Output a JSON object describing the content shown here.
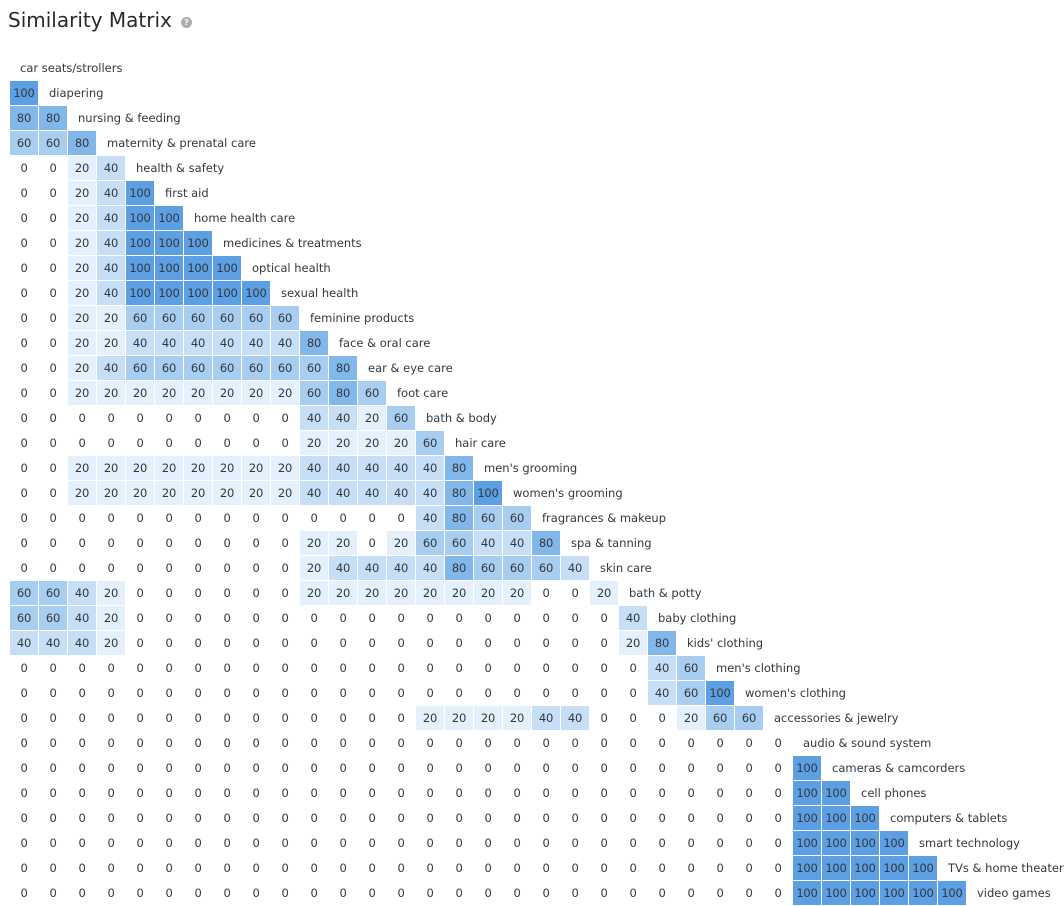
{
  "title": "Similarity Matrix",
  "help_icon": {
    "name": "help-icon",
    "glyph": "?"
  },
  "colors": {
    "0": "#ffffff",
    "20": "#e4f0fb",
    "40": "#c6dff6",
    "60": "#a7cdf0",
    "80": "#82b7ea",
    "100": "#5c9fe3",
    "text": "#333840"
  },
  "chart_data": {
    "type": "heatmap",
    "title": "Similarity Matrix",
    "labels": [
      "car seats/strollers",
      "diapering",
      "nursing & feeding",
      "maternity & prenatal care",
      "health & safety",
      "first aid",
      "home health care",
      "medicines & treatments",
      "optical health",
      "sexual health",
      "feminine products",
      "face & oral care",
      "ear & eye care",
      "foot care",
      "bath & body",
      "hair care",
      "men's grooming",
      "women's grooming",
      "fragrances & makeup",
      "spa & tanning",
      "skin care",
      "bath & potty",
      "baby clothing",
      "kids' clothing",
      "men's clothing",
      "women's clothing",
      "accessories & jewelry",
      "audio & sound system",
      "cameras & camcorders",
      "cell phones",
      "computers & tablets",
      "smart technology",
      "TVs & home theater",
      "video games"
    ],
    "rows": [
      [],
      [
        100
      ],
      [
        80,
        80
      ],
      [
        60,
        60,
        80
      ],
      [
        0,
        0,
        20,
        40
      ],
      [
        0,
        0,
        20,
        40,
        100
      ],
      [
        0,
        0,
        20,
        40,
        100,
        100
      ],
      [
        0,
        0,
        20,
        40,
        100,
        100,
        100
      ],
      [
        0,
        0,
        20,
        40,
        100,
        100,
        100,
        100
      ],
      [
        0,
        0,
        20,
        40,
        100,
        100,
        100,
        100,
        100
      ],
      [
        0,
        0,
        20,
        20,
        60,
        60,
        60,
        60,
        60,
        60
      ],
      [
        0,
        0,
        20,
        20,
        40,
        40,
        40,
        40,
        40,
        40,
        80
      ],
      [
        0,
        0,
        20,
        40,
        60,
        60,
        60,
        60,
        60,
        60,
        60,
        80
      ],
      [
        0,
        0,
        20,
        20,
        20,
        20,
        20,
        20,
        20,
        20,
        60,
        80,
        60
      ],
      [
        0,
        0,
        0,
        0,
        0,
        0,
        0,
        0,
        0,
        0,
        40,
        40,
        20,
        60
      ],
      [
        0,
        0,
        0,
        0,
        0,
        0,
        0,
        0,
        0,
        0,
        20,
        20,
        20,
        20,
        60
      ],
      [
        0,
        0,
        20,
        20,
        20,
        20,
        20,
        20,
        20,
        20,
        40,
        40,
        40,
        40,
        40,
        80
      ],
      [
        0,
        0,
        20,
        20,
        20,
        20,
        20,
        20,
        20,
        20,
        40,
        40,
        40,
        40,
        40,
        80,
        100
      ],
      [
        0,
        0,
        0,
        0,
        0,
        0,
        0,
        0,
        0,
        0,
        0,
        0,
        0,
        0,
        40,
        80,
        60,
        60
      ],
      [
        0,
        0,
        0,
        0,
        0,
        0,
        0,
        0,
        0,
        0,
        20,
        20,
        0,
        20,
        60,
        60,
        40,
        40,
        80
      ],
      [
        0,
        0,
        0,
        0,
        0,
        0,
        0,
        0,
        0,
        0,
        20,
        40,
        40,
        40,
        40,
        80,
        60,
        60,
        60,
        40
      ],
      [
        60,
        60,
        40,
        20,
        0,
        0,
        0,
        0,
        0,
        0,
        20,
        20,
        20,
        20,
        20,
        20,
        20,
        20,
        0,
        0,
        20
      ],
      [
        60,
        60,
        40,
        20,
        0,
        0,
        0,
        0,
        0,
        0,
        0,
        0,
        0,
        0,
        0,
        0,
        0,
        0,
        0,
        0,
        0,
        40
      ],
      [
        40,
        40,
        40,
        20,
        0,
        0,
        0,
        0,
        0,
        0,
        0,
        0,
        0,
        0,
        0,
        0,
        0,
        0,
        0,
        0,
        0,
        20,
        80
      ],
      [
        0,
        0,
        0,
        0,
        0,
        0,
        0,
        0,
        0,
        0,
        0,
        0,
        0,
        0,
        0,
        0,
        0,
        0,
        0,
        0,
        0,
        0,
        40,
        60
      ],
      [
        0,
        0,
        0,
        0,
        0,
        0,
        0,
        0,
        0,
        0,
        0,
        0,
        0,
        0,
        0,
        0,
        0,
        0,
        0,
        0,
        0,
        0,
        40,
        60,
        100
      ],
      [
        0,
        0,
        0,
        0,
        0,
        0,
        0,
        0,
        0,
        0,
        0,
        0,
        0,
        0,
        20,
        20,
        20,
        20,
        40,
        40,
        0,
        0,
        0,
        20,
        60,
        60
      ],
      [
        0,
        0,
        0,
        0,
        0,
        0,
        0,
        0,
        0,
        0,
        0,
        0,
        0,
        0,
        0,
        0,
        0,
        0,
        0,
        0,
        0,
        0,
        0,
        0,
        0,
        0,
        0
      ],
      [
        0,
        0,
        0,
        0,
        0,
        0,
        0,
        0,
        0,
        0,
        0,
        0,
        0,
        0,
        0,
        0,
        0,
        0,
        0,
        0,
        0,
        0,
        0,
        0,
        0,
        0,
        0,
        100
      ],
      [
        0,
        0,
        0,
        0,
        0,
        0,
        0,
        0,
        0,
        0,
        0,
        0,
        0,
        0,
        0,
        0,
        0,
        0,
        0,
        0,
        0,
        0,
        0,
        0,
        0,
        0,
        0,
        100,
        100
      ],
      [
        0,
        0,
        0,
        0,
        0,
        0,
        0,
        0,
        0,
        0,
        0,
        0,
        0,
        0,
        0,
        0,
        0,
        0,
        0,
        0,
        0,
        0,
        0,
        0,
        0,
        0,
        0,
        100,
        100,
        100
      ],
      [
        0,
        0,
        0,
        0,
        0,
        0,
        0,
        0,
        0,
        0,
        0,
        0,
        0,
        0,
        0,
        0,
        0,
        0,
        0,
        0,
        0,
        0,
        0,
        0,
        0,
        0,
        0,
        100,
        100,
        100,
        100
      ],
      [
        0,
        0,
        0,
        0,
        0,
        0,
        0,
        0,
        0,
        0,
        0,
        0,
        0,
        0,
        0,
        0,
        0,
        0,
        0,
        0,
        0,
        0,
        0,
        0,
        0,
        0,
        0,
        100,
        100,
        100,
        100,
        100
      ],
      [
        0,
        0,
        0,
        0,
        0,
        0,
        0,
        0,
        0,
        0,
        0,
        0,
        0,
        0,
        0,
        0,
        0,
        0,
        0,
        0,
        0,
        0,
        0,
        0,
        0,
        0,
        0,
        100,
        100,
        100,
        100,
        100,
        100
      ]
    ]
  }
}
